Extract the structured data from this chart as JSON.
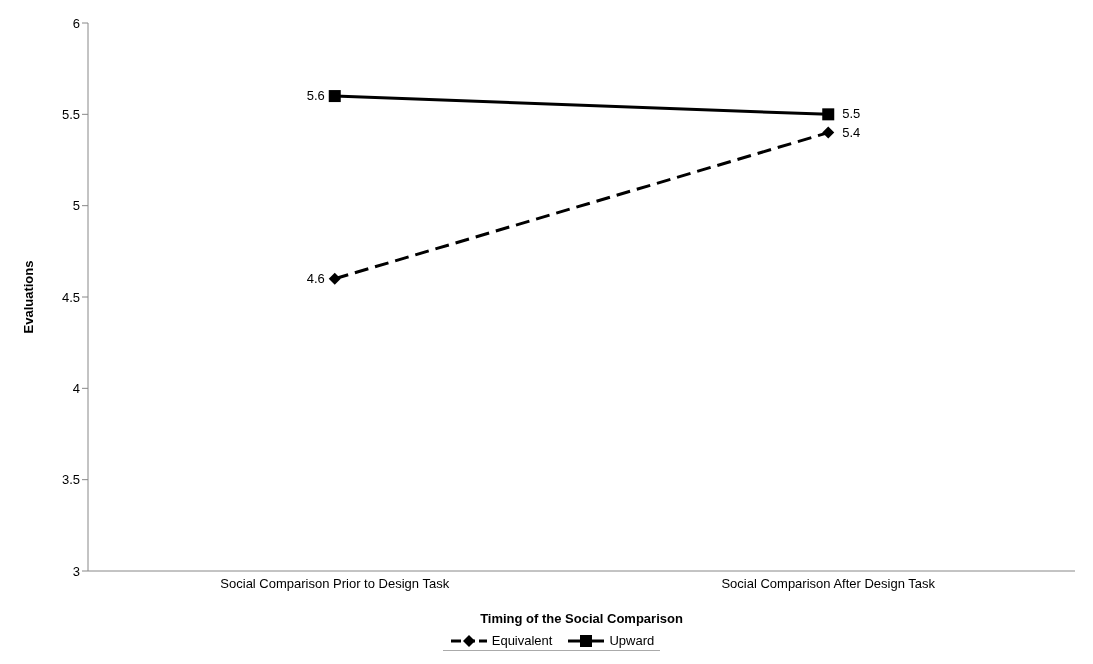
{
  "chart_data": {
    "type": "line",
    "xlabel": "Timing of the Social Comparison",
    "ylabel": "Evaluations",
    "categories": [
      "Social Comparison Prior to Design Task",
      "Social Comparison After Design Task"
    ],
    "series": [
      {
        "name": "Equivalent",
        "color": "#000000",
        "values": [
          4.6,
          5.4
        ],
        "marker": "diamond",
        "line_style": "dashed"
      },
      {
        "name": "Upward",
        "color": "#000000",
        "values": [
          5.6,
          5.5
        ],
        "marker": "square",
        "line_style": "solid"
      }
    ],
    "ylim": [
      3,
      6
    ],
    "yticks": [
      3,
      3.5,
      4,
      4.5,
      5,
      5.5,
      6
    ],
    "grid": false,
    "legend": "bottom",
    "data_labels": true
  }
}
